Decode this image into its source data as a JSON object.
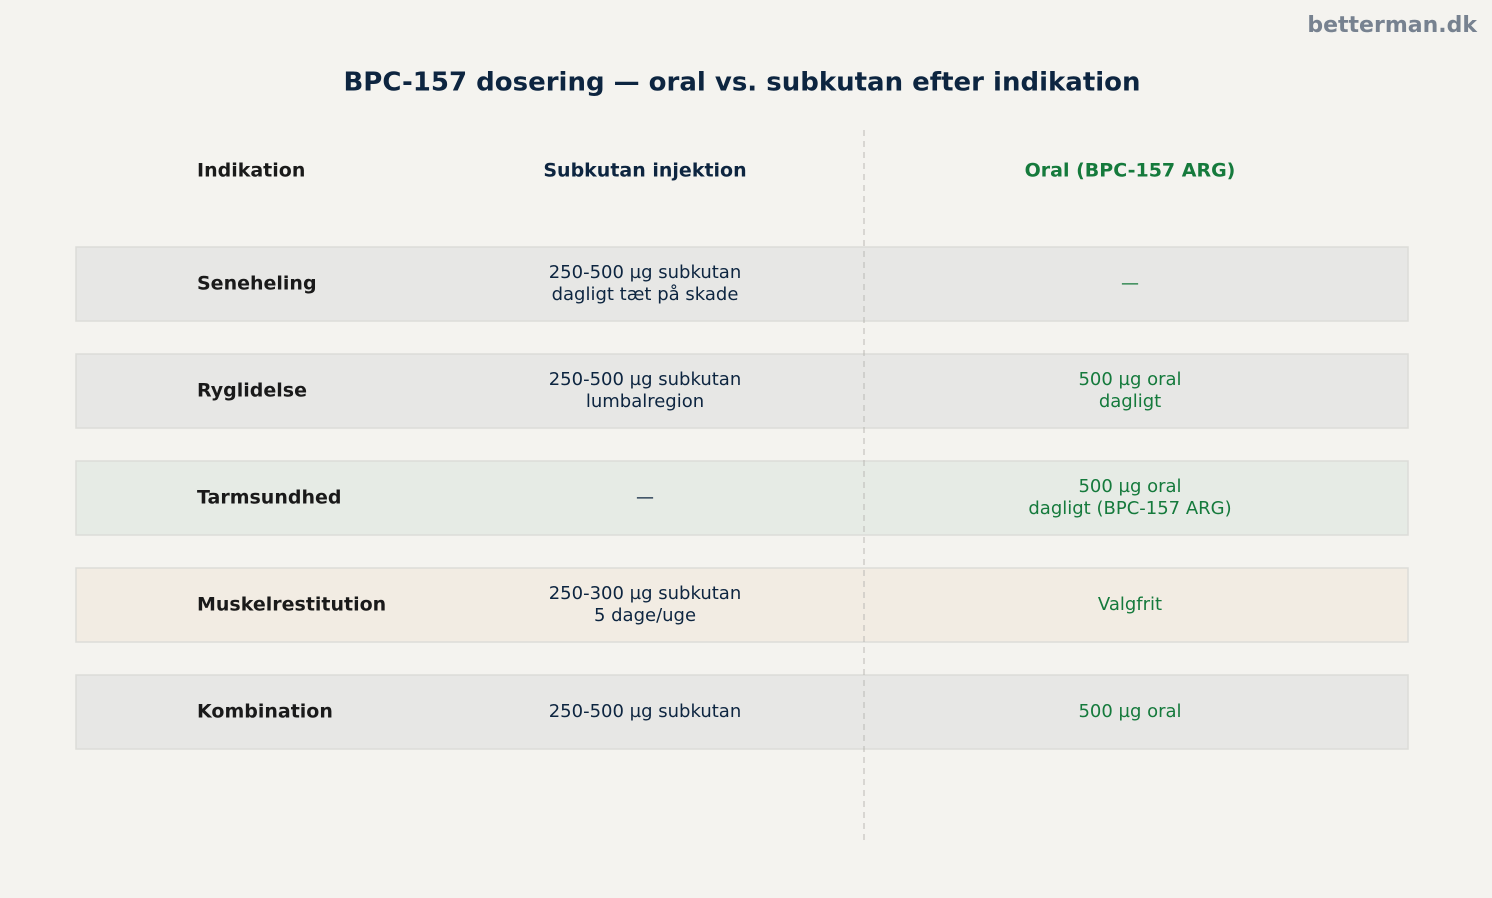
{
  "watermark": "betterman.dk",
  "title": "BPC-157 dosering — oral vs. subkutan efter indikation",
  "table": {
    "header": [
      "Indikation",
      "Subkutan injektion",
      "Oral (BPC-157 ARG)"
    ],
    "rows": [
      {
        "color": "#e7e7e5",
        "cells": [
          [
            "Seneheling"
          ],
          [
            "250-500 µg subkutan",
            "dagligt tæt på skade"
          ],
          [
            "—"
          ]
        ]
      },
      {
        "color": "#e7e7e5",
        "cells": [
          [
            "Ryglidelse"
          ],
          [
            "250-500 µg subkutan",
            "lumbalregion"
          ],
          [
            "500 µg oral",
            "dagligt"
          ]
        ]
      },
      {
        "color": "#e6ebe5",
        "cells": [
          [
            "Tarmsundhed"
          ],
          [
            "—"
          ],
          [
            "500 µg oral",
            "dagligt (BPC-157 ARG)"
          ]
        ]
      },
      {
        "color": "#f2ece3",
        "cells": [
          [
            "Muskelrestitution"
          ],
          [
            "250-300 µg subkutan",
            "5 dage/uge"
          ],
          [
            "Valgfrit"
          ]
        ]
      },
      {
        "color": "#e7e7e5",
        "cells": [
          [
            "Kombination"
          ],
          [
            "250-500 µg subkutan"
          ],
          [
            "500 µg oral"
          ]
        ]
      }
    ]
  }
}
